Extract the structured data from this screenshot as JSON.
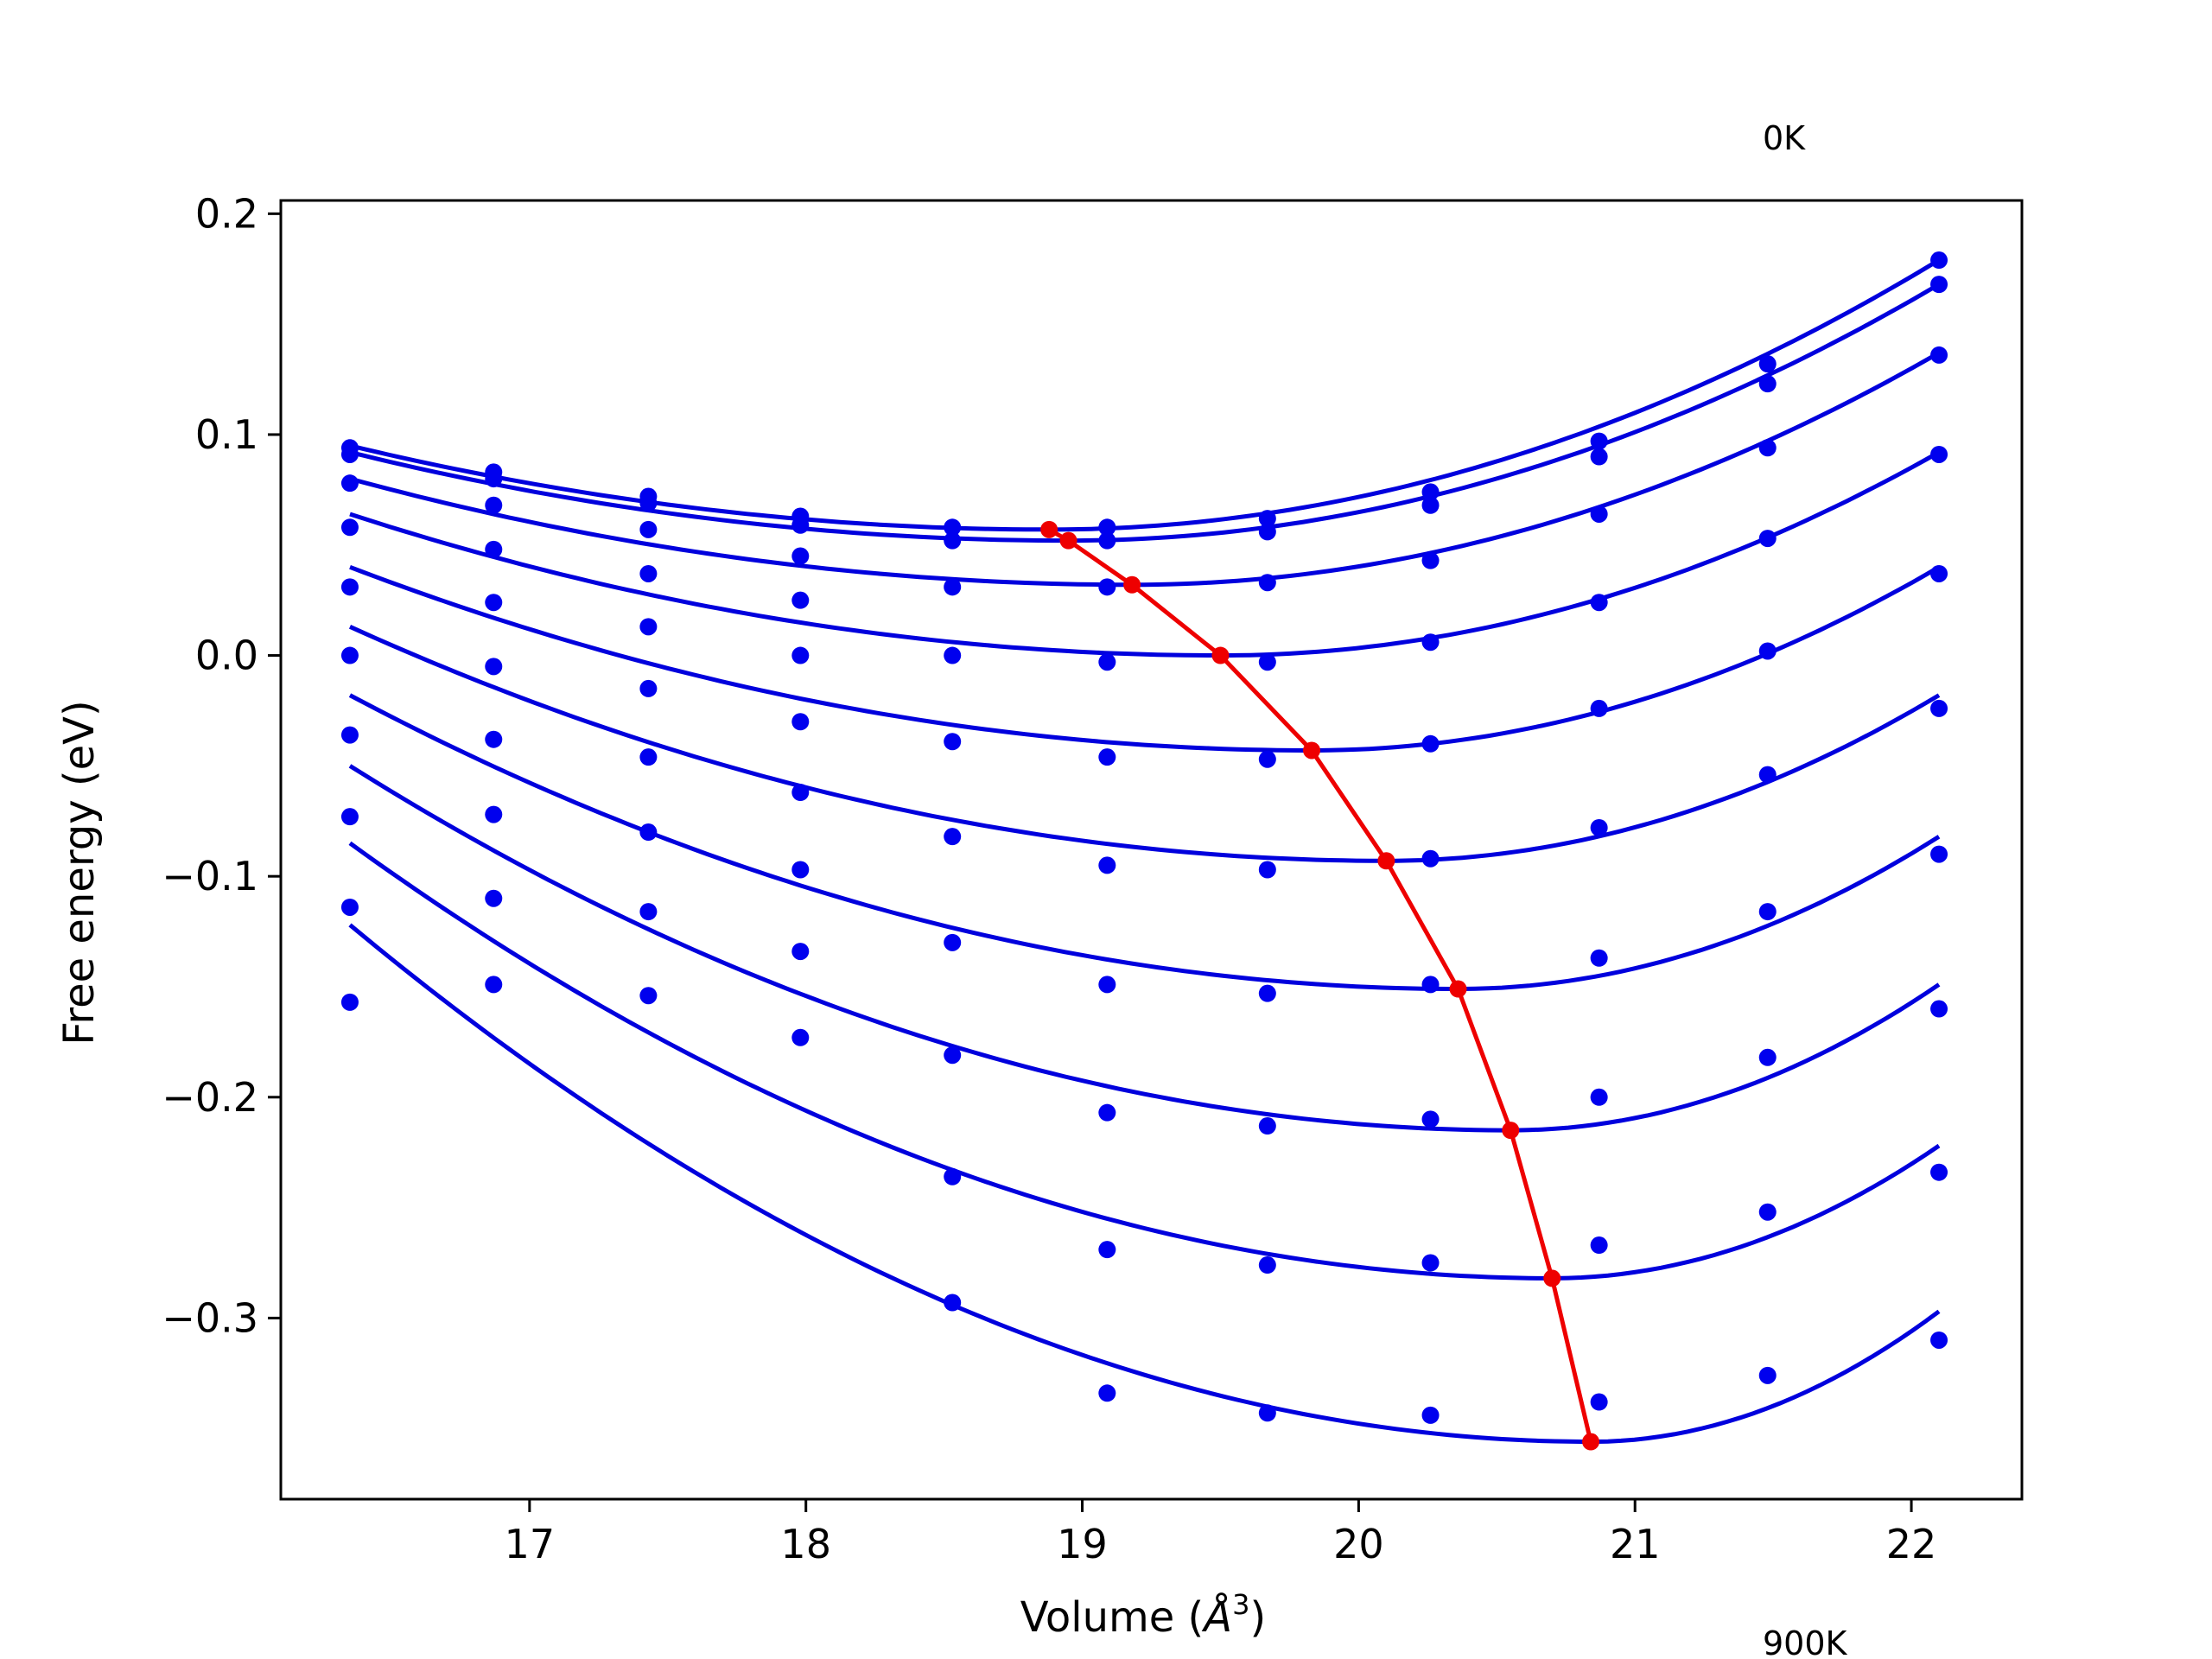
{
  "chart_data": {
    "type": "line",
    "xlabel_text": "Volume (",
    "xlabel_math": "Å",
    "xlabel_sup": "3",
    "xlabel_close": ")",
    "ylabel": "Free energy (eV)",
    "xlim": [
      16.1,
      22.4
    ],
    "ylim": [
      -0.382,
      0.206
    ],
    "xticks": [
      17,
      18,
      19,
      20,
      21,
      22
    ],
    "xtick_labels": [
      "17",
      "18",
      "19",
      "20",
      "21",
      "22"
    ],
    "yticks": [
      0.2,
      0.1,
      0.0,
      -0.1,
      -0.2,
      -0.3
    ],
    "ytick_labels": [
      "0.2",
      "0.1",
      "0.0",
      "−0.1",
      "−0.2",
      "−0.3"
    ],
    "annotations": {
      "top": "0K",
      "bottom": "900K"
    },
    "colors": {
      "points": "#0000ee",
      "fits": "#0000dd",
      "minima": "#ee0000"
    },
    "volumes": [
      16.35,
      16.87,
      17.43,
      17.98,
      18.53,
      19.09,
      19.67,
      20.26,
      20.87,
      21.48,
      22.1
    ],
    "series": [
      {
        "points": [
          0.094,
          0.083,
          0.072,
          0.063,
          0.058,
          0.058,
          0.062,
          0.074,
          0.097,
          0.132,
          0.179
        ],
        "fit": [
          [
            16.35,
            0.095
          ],
          [
            18.88,
            0.057
          ],
          [
            22.1,
            0.179
          ]
        ]
      },
      {
        "points": [
          0.091,
          0.08,
          0.069,
          0.059,
          0.052,
          0.052,
          0.056,
          0.068,
          0.09,
          0.123,
          0.168
        ],
        "fit": [
          [
            16.35,
            0.092
          ],
          [
            18.95,
            0.052
          ],
          [
            22.1,
            0.168
          ]
        ]
      },
      {
        "points": [
          0.078,
          0.068,
          0.057,
          0.045,
          0.031,
          0.031,
          0.033,
          0.043,
          0.064,
          0.094,
          0.136
        ],
        "fit": [
          [
            16.35,
            0.08
          ],
          [
            19.18,
            0.032
          ],
          [
            22.1,
            0.137
          ]
        ]
      },
      {
        "points": [
          0.058,
          0.048,
          0.037,
          0.025,
          0.0,
          -0.003,
          -0.003,
          0.006,
          0.024,
          0.053,
          0.091
        ],
        "fit": [
          [
            16.35,
            0.064
          ],
          [
            19.5,
            0.0
          ],
          [
            22.1,
            0.092
          ]
        ]
      },
      {
        "points": [
          0.031,
          0.024,
          0.013,
          0.0,
          -0.039,
          -0.046,
          -0.047,
          -0.04,
          -0.024,
          0.002,
          0.037
        ],
        "fit": [
          [
            16.35,
            0.04
          ],
          [
            19.83,
            -0.043
          ],
          [
            22.1,
            0.04
          ]
        ]
      },
      {
        "points": [
          0.0,
          -0.005,
          -0.015,
          -0.03,
          -0.082,
          -0.095,
          -0.097,
          -0.092,
          -0.078,
          -0.054,
          -0.024
        ],
        "fit": [
          [
            16.35,
            0.013
          ],
          [
            20.1,
            -0.093
          ],
          [
            22.1,
            -0.018
          ]
        ]
      },
      {
        "points": [
          -0.036,
          -0.038,
          -0.046,
          -0.062,
          -0.13,
          -0.149,
          -0.153,
          -0.149,
          -0.137,
          -0.116,
          -0.09
        ],
        "fit": [
          [
            16.35,
            -0.018
          ],
          [
            20.36,
            -0.151
          ],
          [
            22.1,
            -0.082
          ]
        ]
      },
      {
        "points": [
          -0.073,
          -0.072,
          -0.08,
          -0.097,
          -0.181,
          -0.207,
          -0.213,
          -0.21,
          -0.2,
          -0.182,
          -0.16
        ],
        "fit": [
          [
            16.35,
            -0.05
          ],
          [
            20.55,
            -0.215
          ],
          [
            22.1,
            -0.149
          ]
        ]
      },
      {
        "points": [
          -0.114,
          -0.11,
          -0.116,
          -0.134,
          -0.236,
          -0.269,
          -0.276,
          -0.275,
          -0.267,
          -0.252,
          -0.234
        ],
        "fit": [
          [
            16.35,
            -0.085
          ],
          [
            20.7,
            -0.282
          ],
          [
            22.1,
            -0.222
          ]
        ]
      },
      {
        "points": [
          -0.157,
          -0.149,
          -0.154,
          -0.173,
          -0.293,
          -0.334,
          -0.343,
          -0.344,
          -0.338,
          -0.326,
          -0.31
        ],
        "fit": [
          [
            16.35,
            -0.122
          ],
          [
            20.84,
            -0.356
          ],
          [
            22.1,
            -0.297
          ]
        ]
      }
    ],
    "minima": [
      [
        18.88,
        0.057
      ],
      [
        18.95,
        0.052
      ],
      [
        19.18,
        0.032
      ],
      [
        19.5,
        0.0
      ],
      [
        19.83,
        -0.043
      ],
      [
        20.1,
        -0.093
      ],
      [
        20.36,
        -0.151
      ],
      [
        20.55,
        -0.215
      ],
      [
        20.7,
        -0.282
      ],
      [
        20.84,
        -0.356
      ]
    ]
  }
}
